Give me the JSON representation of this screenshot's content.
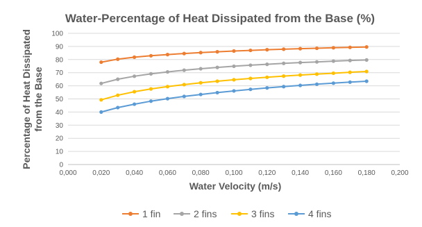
{
  "chart_data": {
    "type": "line",
    "title": "Water-Percentage of Heat Dissipated from the Base (%)",
    "xlabel": "Water Velocity (m/s)",
    "ylabel_lines": [
      "Percentage of Heat Dissipated",
      "from the Base"
    ],
    "xlim": [
      0,
      0.2
    ],
    "ylim": [
      0,
      100
    ],
    "x_ticks": [
      "0,000",
      "0,020",
      "0,040",
      "0,060",
      "0,080",
      "0,100",
      "0,120",
      "0,140",
      "0,160",
      "0,180",
      "0,200"
    ],
    "y_ticks": [
      "0",
      "10",
      "20",
      "30",
      "40",
      "50",
      "60",
      "70",
      "80",
      "90",
      "100"
    ],
    "grid": "horizontal",
    "legend_position": "bottom",
    "x": [
      0.02,
      0.03,
      0.04,
      0.05,
      0.06,
      0.07,
      0.08,
      0.09,
      0.1,
      0.11,
      0.12,
      0.13,
      0.14,
      0.15,
      0.16,
      0.17,
      0.18
    ],
    "series": [
      {
        "name": "1 fin",
        "color": "#ed7d31",
        "values": [
          78.0,
          80.3,
          81.8,
          82.9,
          83.8,
          84.6,
          85.3,
          85.9,
          86.5,
          87.0,
          87.5,
          87.9,
          88.3,
          88.6,
          89.0,
          89.3,
          89.6
        ]
      },
      {
        "name": "2 fins",
        "color": "#a5a5a5",
        "values": [
          61.8,
          65.0,
          67.3,
          69.1,
          70.6,
          71.9,
          73.0,
          74.0,
          74.9,
          75.7,
          76.4,
          77.1,
          77.7,
          78.2,
          78.8,
          79.3,
          79.7
        ]
      },
      {
        "name": "3 fins",
        "color": "#ffc000",
        "values": [
          49.3,
          52.8,
          55.5,
          57.6,
          59.4,
          60.9,
          62.3,
          63.5,
          64.6,
          65.6,
          66.5,
          67.4,
          68.2,
          68.9,
          69.6,
          70.3,
          70.9
        ]
      },
      {
        "name": "4 fins",
        "color": "#5b9bd5",
        "values": [
          40.0,
          43.4,
          46.0,
          48.3,
          50.2,
          51.9,
          53.4,
          54.8,
          56.1,
          57.3,
          58.4,
          59.4,
          60.3,
          61.2,
          62.0,
          62.8,
          63.5
        ]
      }
    ]
  }
}
